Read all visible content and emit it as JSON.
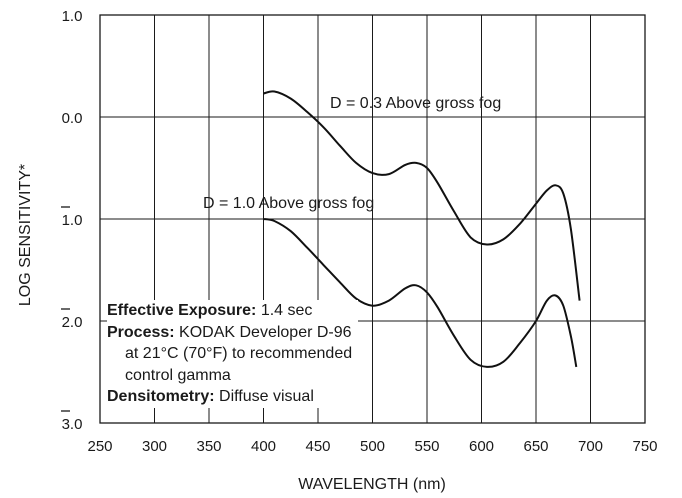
{
  "chart_data": {
    "type": "line",
    "xlabel": "WAVELENGTH (nm)",
    "ylabel": "LOG SENSITIVITY*",
    "xlim": [
      250,
      750
    ],
    "ylim": [
      -1.0,
      3.0
    ],
    "y_inverted": true,
    "grid": true,
    "x_ticks": [
      "250",
      "300",
      "350",
      "400",
      "450",
      "500",
      "550",
      "600",
      "650",
      "700",
      "750"
    ],
    "y_ticks": [
      {
        "value": -1.0,
        "label": "1.0",
        "bar": false
      },
      {
        "value": 0.0,
        "label": "0.0",
        "bar": false
      },
      {
        "value": 1.0,
        "label": "1.0",
        "bar": true
      },
      {
        "value": 2.0,
        "label": "2.0",
        "bar": true
      },
      {
        "value": 3.0,
        "label": "3.0",
        "bar": true
      }
    ],
    "series": [
      {
        "name": "D = 0.3 Above gross fog",
        "x": [
          400,
          410,
          425,
          440,
          455,
          470,
          485,
          500,
          515,
          530,
          540,
          550,
          560,
          575,
          590,
          605,
          620,
          635,
          650,
          660,
          668,
          675,
          682,
          690
        ],
        "y": [
          -0.23,
          -0.25,
          -0.18,
          -0.05,
          0.1,
          0.28,
          0.45,
          0.55,
          0.56,
          0.47,
          0.45,
          0.5,
          0.65,
          0.93,
          1.18,
          1.25,
          1.2,
          1.05,
          0.85,
          0.72,
          0.67,
          0.75,
          1.1,
          1.8
        ]
      },
      {
        "name": "D = 1.0 Above gross fog",
        "x": [
          400,
          410,
          425,
          440,
          455,
          470,
          485,
          500,
          515,
          530,
          540,
          550,
          560,
          575,
          590,
          605,
          620,
          635,
          650,
          660,
          668,
          675,
          682,
          687
        ],
        "y": [
          1.0,
          1.02,
          1.12,
          1.28,
          1.45,
          1.62,
          1.78,
          1.85,
          1.8,
          1.68,
          1.65,
          1.72,
          1.87,
          2.15,
          2.38,
          2.45,
          2.4,
          2.22,
          2.0,
          1.8,
          1.75,
          1.85,
          2.15,
          2.45
        ]
      }
    ],
    "annotations": {
      "series1": "D = 0.3 Above gross fog",
      "series2": "D = 1.0 Above gross fog"
    }
  },
  "notes": {
    "exposure_label": "Effective Exposure:",
    "exposure_value": " 1.4 sec",
    "process_label": "Process:",
    "process_line1": " KODAK Developer D-96",
    "process_line2": "at 21°C (70°F) to recommended",
    "process_line3": "control gamma",
    "densitometry_label": "Densitometry:",
    "densitometry_value": " Diffuse visual"
  }
}
